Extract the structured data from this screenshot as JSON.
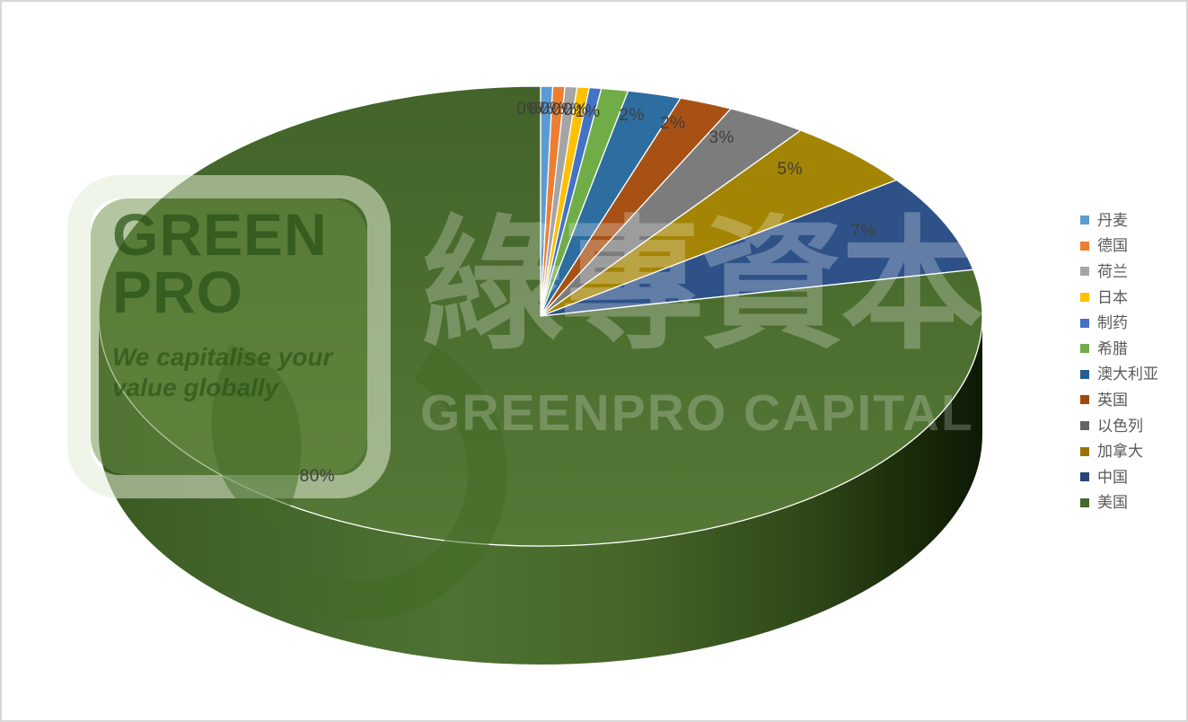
{
  "chart_data": {
    "type": "pie",
    "projection": "3d",
    "start_angle_deg": 0,
    "direction": "clockwise",
    "legend_position": "right",
    "data_label_color": "#3F3F3F",
    "slices": [
      {
        "label": "丹麦",
        "value": 0,
        "display": "0%",
        "color": "#5B9BD5"
      },
      {
        "label": "德国",
        "value": 0,
        "display": "0%",
        "color": "#ED7D31"
      },
      {
        "label": "荷兰",
        "value": 0,
        "display": "0%",
        "color": "#A5A5A5"
      },
      {
        "label": "日本",
        "value": 0,
        "display": "0%",
        "color": "#FFC000"
      },
      {
        "label": "制药",
        "value": 0,
        "display": "0%",
        "color": "#4472C4"
      },
      {
        "label": "希腊",
        "value": 1,
        "display": "1%",
        "color": "#70AD47"
      },
      {
        "label": "澳大利亚",
        "value": 2,
        "display": "2%",
        "color": "#2D6DA0",
        "legend_color": "#255E91"
      },
      {
        "label": "英国",
        "value": 2,
        "display": "2%",
        "color": "#A85114",
        "legend_color": "#9E480E"
      },
      {
        "label": "以色列",
        "value": 3,
        "display": "3%",
        "color": "#7C7C7C",
        "legend_color": "#636363"
      },
      {
        "label": "加拿大",
        "value": 5,
        "display": "5%",
        "color": "#A38404",
        "legend_color": "#997300"
      },
      {
        "label": "中国",
        "value": 7,
        "display": "7%",
        "color": "#2E5288",
        "legend_color": "#264478"
      },
      {
        "label": "美国",
        "value": 80,
        "display": "80%",
        "color": "#4C6E2F",
        "legend_color": "#43682B"
      }
    ]
  },
  "watermarks": {
    "logo": {
      "line1": "GREEN",
      "line2": "PRO",
      "tagline_line1": "We capitalise your",
      "tagline_line2": "value globally"
    },
    "center": {
      "cjk": "綠專資本",
      "latin": "GREENPRO CAPITAL"
    }
  }
}
